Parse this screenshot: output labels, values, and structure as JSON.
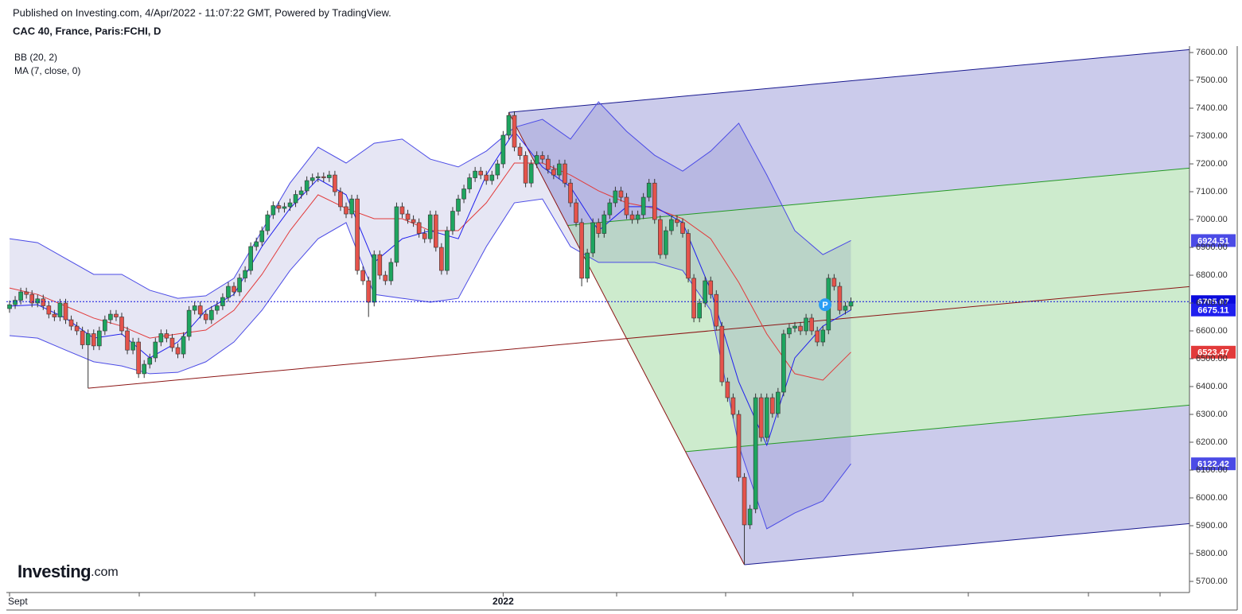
{
  "header": {
    "published": "Published on Investing.com, 4/Apr/2022 - 11:07:22 GMT, Powered by TradingView.",
    "symbol": "CAC 40, France, Paris:FCHI, D",
    "logo": [
      "Investing",
      ".com"
    ]
  },
  "chart_data": {
    "type": "candlestick",
    "categories": [
      "Sept",
      null,
      null,
      null,
      null,
      null,
      null,
      null,
      null,
      null,
      null,
      null,
      null,
      null,
      null,
      null,
      null,
      null,
      null,
      null,
      null,
      null,
      null,
      null,
      null,
      null,
      null,
      null,
      null,
      null,
      null,
      null,
      null,
      null,
      null,
      null,
      null,
      null,
      null,
      null,
      null,
      null,
      null,
      null,
      null,
      null,
      null,
      null,
      null,
      null,
      null,
      null,
      null,
      null,
      null,
      null,
      null,
      null,
      null,
      null,
      null,
      null,
      null,
      null,
      null,
      null,
      null,
      null,
      null,
      null,
      null,
      null,
      null,
      null,
      null,
      null,
      null,
      null,
      null,
      null,
      null,
      null,
      null,
      null,
      null,
      null,
      null,
      null,
      "2022",
      null,
      null,
      null,
      null,
      null,
      null,
      null,
      null,
      null,
      null,
      null,
      null,
      null,
      null,
      null,
      null,
      null,
      null,
      null,
      null,
      null,
      null,
      null,
      null,
      null,
      null,
      null,
      null,
      null,
      null,
      null,
      null,
      null,
      null,
      null,
      null,
      null,
      null,
      null,
      null,
      null,
      null,
      null,
      null,
      null,
      null,
      null,
      null,
      null,
      null,
      null,
      null,
      null,
      null,
      null,
      null,
      null,
      null,
      null,
      null,
      null,
      null,
      null,
      null,
      null,
      null,
      null
    ],
    "candles": [
      [
        6680,
        6709,
        6665,
        6694
      ],
      [
        6694,
        6725,
        6679,
        6710
      ],
      [
        6710,
        6755,
        6695,
        6740
      ],
      [
        6740,
        6755,
        6716,
        6731
      ],
      [
        6731,
        6746,
        6685,
        6700
      ],
      [
        6700,
        6730,
        6685,
        6715
      ],
      [
        6715,
        6730,
        6675,
        6690
      ],
      [
        6690,
        6705,
        6645,
        6660
      ],
      [
        6660,
        6675,
        6635,
        6650
      ],
      [
        6650,
        6715,
        6635,
        6700
      ],
      [
        6700,
        6715,
        6625,
        6640
      ],
      [
        6640,
        6655,
        6602,
        6617
      ],
      [
        6617,
        6632,
        6585,
        6600
      ],
      [
        6600,
        6615,
        6535,
        6550
      ],
      [
        6550,
        6605,
        6394,
        6590
      ],
      [
        6590,
        6605,
        6531,
        6546
      ],
      [
        6546,
        6615,
        6531,
        6600
      ],
      [
        6600,
        6655,
        6585,
        6640
      ],
      [
        6640,
        6675,
        6625,
        6660
      ],
      [
        6660,
        6675,
        6635,
        6650
      ],
      [
        6650,
        6665,
        6585,
        6600
      ],
      [
        6600,
        6615,
        6516,
        6531
      ],
      [
        6531,
        6575,
        6516,
        6560
      ],
      [
        6560,
        6575,
        6431,
        6446
      ],
      [
        6446,
        6495,
        6431,
        6480
      ],
      [
        6480,
        6518,
        6465,
        6503
      ],
      [
        6503,
        6575,
        6488,
        6560
      ],
      [
        6560,
        6605,
        6545,
        6590
      ],
      [
        6590,
        6605,
        6559,
        6574
      ],
      [
        6574,
        6589,
        6525,
        6540
      ],
      [
        6540,
        6555,
        6502,
        6517
      ],
      [
        6517,
        6595,
        6502,
        6580
      ],
      [
        6580,
        6689,
        6565,
        6674
      ],
      [
        6674,
        6705,
        6659,
        6690
      ],
      [
        6690,
        6705,
        6645,
        6660
      ],
      [
        6660,
        6675,
        6625,
        6640
      ],
      [
        6640,
        6689,
        6625,
        6674
      ],
      [
        6674,
        6705,
        6659,
        6690
      ],
      [
        6690,
        6735,
        6675,
        6720
      ],
      [
        6720,
        6775,
        6705,
        6760
      ],
      [
        6760,
        6775,
        6725,
        6740
      ],
      [
        6740,
        6805,
        6725,
        6790
      ],
      [
        6790,
        6832,
        6775,
        6817
      ],
      [
        6817,
        6918,
        6802,
        6903
      ],
      [
        6903,
        6935,
        6888,
        6920
      ],
      [
        6920,
        6975,
        6905,
        6960
      ],
      [
        6960,
        7032,
        6945,
        7017
      ],
      [
        7017,
        7065,
        7002,
        7050
      ],
      [
        7050,
        7065,
        7025,
        7040
      ],
      [
        7040,
        7061,
        7025,
        7046
      ],
      [
        7046,
        7075,
        7031,
        7060
      ],
      [
        7060,
        7105,
        7045,
        7090
      ],
      [
        7090,
        7118,
        7075,
        7103
      ],
      [
        7103,
        7155,
        7088,
        7140
      ],
      [
        7140,
        7165,
        7125,
        7150
      ],
      [
        7150,
        7169,
        7135,
        7154
      ],
      [
        7154,
        7169,
        7135,
        7150
      ],
      [
        7150,
        7175,
        7135,
        7160
      ],
      [
        7160,
        7175,
        7085,
        7100
      ],
      [
        7100,
        7115,
        7031,
        7046
      ],
      [
        7046,
        7061,
        7005,
        7020
      ],
      [
        7020,
        7089,
        7005,
        7074
      ],
      [
        7074,
        7089,
        6802,
        6817
      ],
      [
        6817,
        6832,
        6765,
        6780
      ],
      [
        6780,
        6795,
        6650,
        6703
      ],
      [
        6703,
        6889,
        6688,
        6874
      ],
      [
        6874,
        6889,
        6785,
        6800
      ],
      [
        6800,
        6815,
        6765,
        6780
      ],
      [
        6780,
        6861,
        6765,
        6846
      ],
      [
        6846,
        7061,
        6831,
        7046
      ],
      [
        7046,
        7061,
        7005,
        7020
      ],
      [
        7020,
        7035,
        6985,
        7000
      ],
      [
        7000,
        7015,
        6974,
        6989
      ],
      [
        6989,
        7004,
        6935,
        6950
      ],
      [
        6950,
        6965,
        6916,
        6931
      ],
      [
        6931,
        7032,
        6916,
        7017
      ],
      [
        7017,
        7032,
        6885,
        6900
      ],
      [
        6900,
        6915,
        6802,
        6817
      ],
      [
        6817,
        6975,
        6802,
        6960
      ],
      [
        6960,
        7045,
        6945,
        7030
      ],
      [
        7030,
        7089,
        7015,
        7074
      ],
      [
        7074,
        7125,
        7059,
        7110
      ],
      [
        7110,
        7165,
        7095,
        7150
      ],
      [
        7150,
        7189,
        7135,
        7174
      ],
      [
        7174,
        7189,
        7145,
        7160
      ],
      [
        7160,
        7175,
        7125,
        7140
      ],
      [
        7140,
        7175,
        7125,
        7160
      ],
      [
        7160,
        7215,
        7145,
        7200
      ],
      [
        7200,
        7318,
        7185,
        7303
      ],
      [
        7303,
        7385,
        7288,
        7374
      ],
      [
        7374,
        7389,
        7245,
        7260
      ],
      [
        7260,
        7275,
        7215,
        7230
      ],
      [
        7230,
        7245,
        7116,
        7131
      ],
      [
        7131,
        7215,
        7116,
        7200
      ],
      [
        7200,
        7245,
        7185,
        7230
      ],
      [
        7230,
        7245,
        7202,
        7217
      ],
      [
        7217,
        7232,
        7165,
        7180
      ],
      [
        7180,
        7195,
        7145,
        7160
      ],
      [
        7160,
        7215,
        7145,
        7200
      ],
      [
        7200,
        7215,
        7116,
        7131
      ],
      [
        7131,
        7146,
        7045,
        7060
      ],
      [
        7060,
        7075,
        6974,
        6989
      ],
      [
        6989,
        7004,
        6760,
        6789
      ],
      [
        6789,
        6895,
        6774,
        6880
      ],
      [
        6880,
        7004,
        6865,
        6989
      ],
      [
        6989,
        7004,
        6935,
        6950
      ],
      [
        6950,
        7032,
        6935,
        7017
      ],
      [
        7017,
        7075,
        7002,
        7060
      ],
      [
        7060,
        7118,
        7045,
        7103
      ],
      [
        7103,
        7118,
        7065,
        7080
      ],
      [
        7080,
        7095,
        7002,
        7017
      ],
      [
        7017,
        7032,
        6985,
        7000
      ],
      [
        7000,
        7032,
        6985,
        7017
      ],
      [
        7017,
        7095,
        7002,
        7080
      ],
      [
        7080,
        7146,
        7065,
        7131
      ],
      [
        7131,
        7146,
        6985,
        7000
      ],
      [
        7000,
        7015,
        6859,
        6874
      ],
      [
        6874,
        6975,
        6859,
        6960
      ],
      [
        6960,
        7015,
        6945,
        7000
      ],
      [
        7000,
        7015,
        6974,
        6989
      ],
      [
        6989,
        7004,
        6935,
        6950
      ],
      [
        6950,
        6965,
        6774,
        6789
      ],
      [
        6789,
        6804,
        6631,
        6646
      ],
      [
        6646,
        6715,
        6631,
        6700
      ],
      [
        6700,
        6795,
        6685,
        6780
      ],
      [
        6780,
        6795,
        6716,
        6731
      ],
      [
        6731,
        6746,
        6602,
        6617
      ],
      [
        6617,
        6632,
        6402,
        6417
      ],
      [
        6417,
        6432,
        6345,
        6360
      ],
      [
        6360,
        6375,
        6285,
        6300
      ],
      [
        6300,
        6315,
        6059,
        6074
      ],
      [
        6074,
        6089,
        5760,
        5903
      ],
      [
        5903,
        5975,
        5888,
        5960
      ],
      [
        5960,
        6375,
        5945,
        6360
      ],
      [
        6360,
        6375,
        6202,
        6217
      ],
      [
        6217,
        6375,
        6202,
        6360
      ],
      [
        6360,
        6375,
        6288,
        6303
      ],
      [
        6303,
        6395,
        6288,
        6380
      ],
      [
        6380,
        6604,
        6365,
        6589
      ],
      [
        6589,
        6625,
        6574,
        6610
      ],
      [
        6610,
        6632,
        6595,
        6617
      ],
      [
        6617,
        6632,
        6585,
        6600
      ],
      [
        6600,
        6661,
        6585,
        6646
      ],
      [
        6646,
        6661,
        6585,
        6600
      ],
      [
        6600,
        6615,
        6545,
        6560
      ],
      [
        6560,
        6618,
        6545,
        6603
      ],
      [
        6603,
        6804,
        6588,
        6789
      ],
      [
        6789,
        6804,
        6745,
        6760
      ],
      [
        6760,
        6775,
        6659,
        6674
      ],
      [
        6674,
        6704,
        6659,
        6689
      ],
      [
        6689,
        6720,
        6674,
        6705.07
      ]
    ],
    "up_color": "#1ea55f",
    "down_color": "#e5534b",
    "last_price_color": "#0b0bdd",
    "bb": {
      "name": "BB (20, 2)",
      "color": "#4b4be6",
      "basis_color": "#e23a3a",
      "fill": "rgba(60,60,170,0.13)",
      "x": [
        0,
        5,
        10,
        15,
        20,
        25,
        30,
        35,
        40,
        45,
        50,
        55,
        60,
        65,
        70,
        75,
        80,
        85,
        90,
        95,
        100,
        105,
        110,
        115,
        120,
        125,
        130,
        135,
        140,
        145,
        150
      ],
      "upper": [
        6931,
        6917,
        6860,
        6803,
        6803,
        6746,
        6717,
        6726,
        6789,
        6960,
        7131,
        7260,
        7203,
        7274,
        7289,
        7217,
        7189,
        7246,
        7331,
        7360,
        7289,
        7423,
        7317,
        7231,
        7174,
        7246,
        7346,
        7160,
        6960,
        6874,
        6924.51
      ],
      "basis": [
        6754,
        6731,
        6689,
        6646,
        6617,
        6574,
        6589,
        6603,
        6674,
        6803,
        6960,
        7089,
        7040,
        7003,
        7003,
        6960,
        6960,
        7060,
        7203,
        7203,
        7160,
        7103,
        7060,
        7040,
        7003,
        6931,
        6774,
        6589,
        6446,
        6423,
        6523.47
      ],
      "lower": [
        6583,
        6574,
        6531,
        6489,
        6474,
        6446,
        6451,
        6489,
        6560,
        6674,
        6817,
        6931,
        6989,
        6731,
        6717,
        6703,
        6717,
        6903,
        7060,
        7074,
        6903,
        6846,
        6846,
        6846,
        6817,
        6674,
        6189,
        5889,
        5946,
        5989,
        6122.42
      ]
    },
    "ma": {
      "name": "MA (7, close, 0)",
      "color": "#1f1fee",
      "x": [
        0,
        5,
        10,
        15,
        20,
        25,
        30,
        35,
        40,
        45,
        50,
        55,
        60,
        65,
        70,
        75,
        80,
        85,
        90,
        95,
        100,
        105,
        110,
        115,
        120,
        125,
        130,
        135,
        140,
        145,
        150
      ],
      "values": [
        6689,
        6694,
        6646,
        6574,
        6589,
        6503,
        6560,
        6674,
        6731,
        6903,
        7040,
        7146,
        7089,
        6846,
        6931,
        6960,
        6931,
        7160,
        7317,
        7189,
        7117,
        6960,
        7046,
        7046,
        6989,
        6746,
        6417,
        6189,
        6503,
        6617,
        6675.11
      ]
    },
    "pitchfork": {
      "points": [
        [
          14,
          6394
        ],
        [
          89,
          7385
        ],
        [
          131,
          5760
        ]
      ],
      "median_color": "#8b1414",
      "outer_color": "#18188f",
      "inner_color": "#249a24",
      "outer_fill": "#cbcbeb",
      "inner_fill": "#cdebcd"
    },
    "marker": "P",
    "ylim": [
      5660,
      7623
    ],
    "yticks": [
      {
        "value": 5700,
        "label": "5700.00"
      },
      {
        "value": 5800,
        "label": "5800.00"
      },
      {
        "value": 5900,
        "label": "5900.00"
      },
      {
        "value": 6000,
        "label": "6000.00"
      },
      {
        "value": 6100,
        "label": "6100.00"
      },
      {
        "value": 6200,
        "label": "6200.00"
      },
      {
        "value": 6300,
        "label": "6300.00"
      },
      {
        "value": 6400,
        "label": "6400.00"
      },
      {
        "value": 6500,
        "label": "6500.00"
      },
      {
        "value": 6600,
        "label": "6600.00"
      },
      {
        "value": 6700,
        "label": "6700.00"
      },
      {
        "value": 6800,
        "label": "6800.00"
      },
      {
        "value": 6900,
        "label": "6900.00"
      },
      {
        "value": 7000,
        "label": "7000.00"
      },
      {
        "value": 7100,
        "label": "7100.00"
      },
      {
        "value": 7200,
        "label": "7200.00"
      },
      {
        "value": 7300,
        "label": "7300.00"
      },
      {
        "value": 7400,
        "label": "7400.00"
      },
      {
        "value": 7500,
        "label": "7500.00"
      },
      {
        "value": 7600,
        "label": "7600.00"
      }
    ],
    "grid": false
  }
}
